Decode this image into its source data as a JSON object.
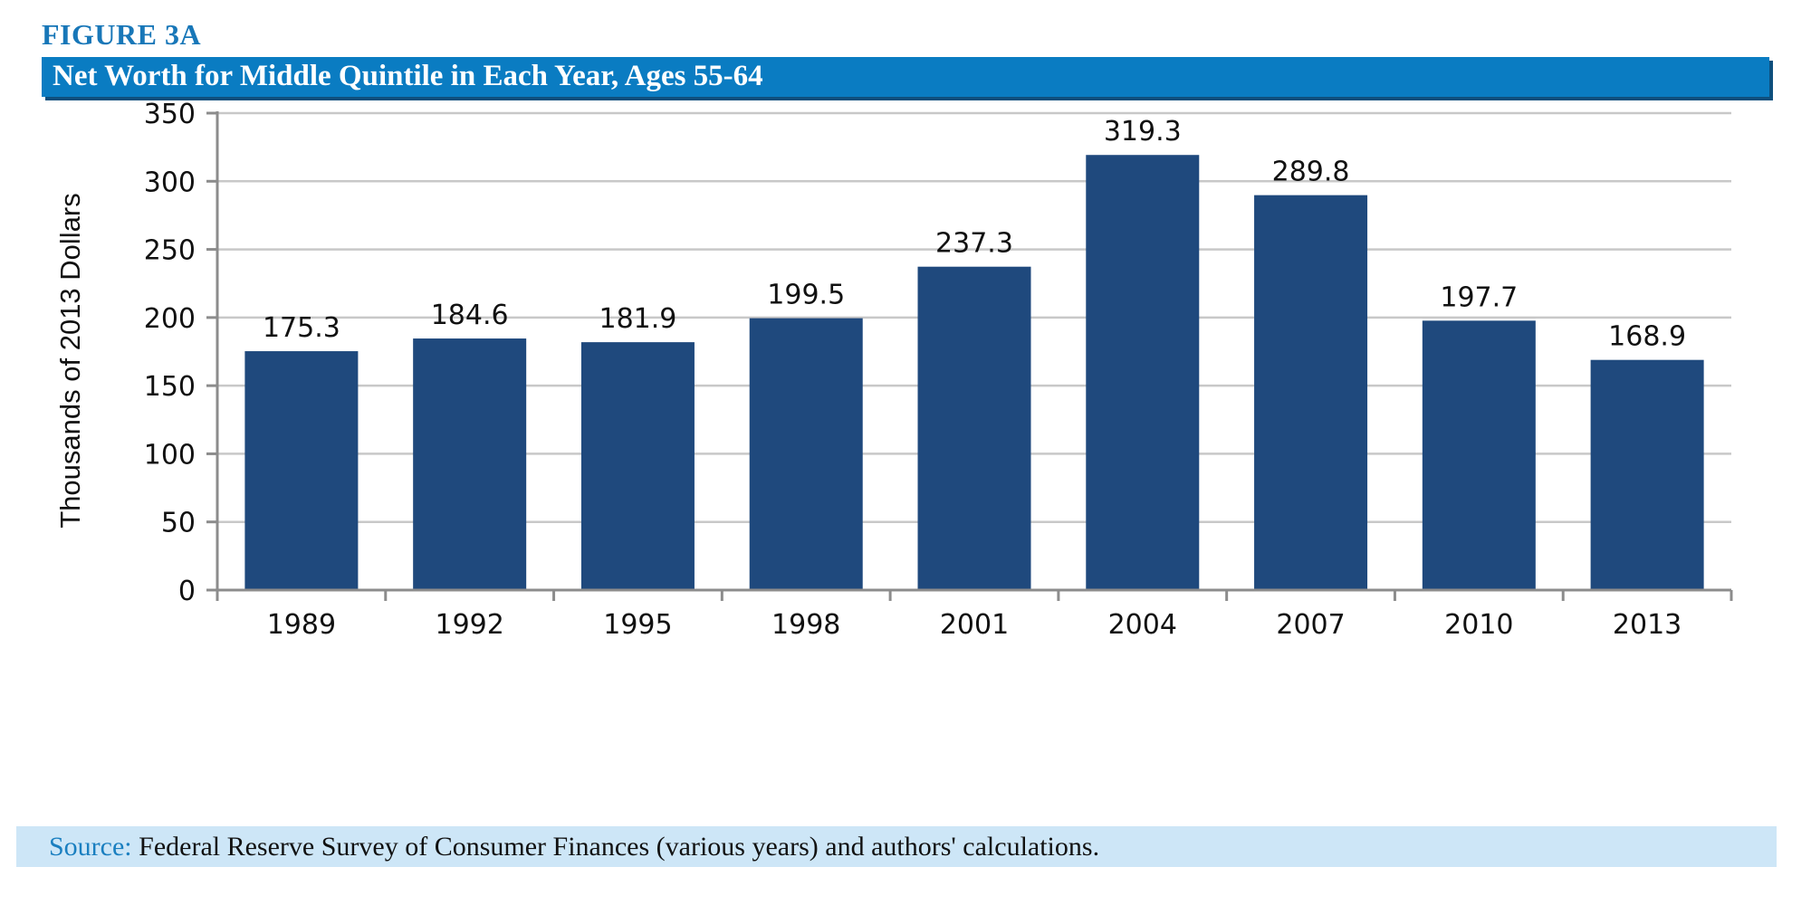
{
  "figure": {
    "label": "FIGURE 3A",
    "title": "Net Worth for Middle Quintile in Each Year, Ages 55-64",
    "source_label": "Source:",
    "source_text": " Federal Reserve Survey of Consumer Finances (various years) and authors' calculations.",
    "colors": {
      "accent": "#0a7cc2",
      "label": "#1877b8",
      "bar": "#1f497d",
      "source_bg": "#cde6f7"
    }
  },
  "chart_data": {
    "type": "bar",
    "title": "Net Worth for Middle Quintile in Each Year, Ages 55-64",
    "xlabel": "",
    "ylabel": "Thousands of 2013 Dollars",
    "categories": [
      "1989",
      "1992",
      "1995",
      "1998",
      "2001",
      "2004",
      "2007",
      "2010",
      "2013"
    ],
    "values": [
      175.3,
      184.6,
      181.9,
      199.5,
      237.3,
      319.3,
      289.8,
      197.7,
      168.9
    ],
    "data_labels": [
      "175.3",
      "184.6",
      "181.9",
      "199.5",
      "237.3",
      "319.3",
      "289.8",
      "197.7",
      "168.9"
    ],
    "ylim": [
      0,
      350
    ],
    "yticks": [
      0,
      50,
      100,
      150,
      200,
      250,
      300,
      350
    ],
    "grid": true,
    "legend": "none"
  }
}
